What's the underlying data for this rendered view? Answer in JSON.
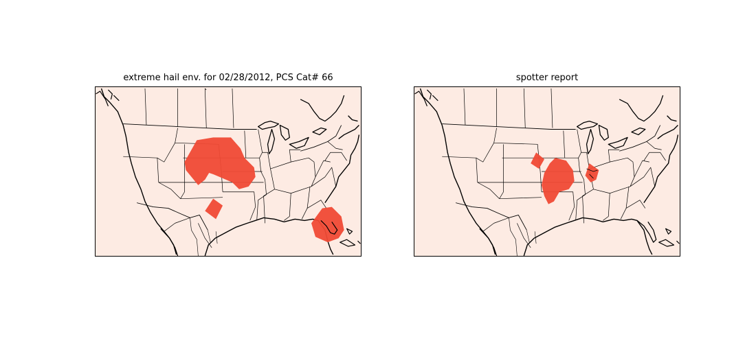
{
  "panels": [
    {
      "title": "extreme hail env. for 02/28/2012, PCS Cat# 66",
      "regions": [
        {
          "name": "central-plains-region",
          "area": "Nebraska / South Dakota / Kansas"
        },
        {
          "name": "new-mexico-region",
          "area": "Eastern New Mexico"
        },
        {
          "name": "florida-region",
          "area": "Southern Florida"
        }
      ]
    },
    {
      "title": "spotter report",
      "regions": [
        {
          "name": "colorado-region",
          "area": "Eastern Colorado"
        },
        {
          "name": "kansas-region",
          "area": "Kansas / Oklahoma"
        },
        {
          "name": "kentucky-region",
          "area": "Kentucky / Tennessee"
        }
      ]
    }
  ],
  "colors": {
    "map_background": "#fdebe3",
    "highlight": "#f04a35",
    "boundary": "#000000"
  }
}
